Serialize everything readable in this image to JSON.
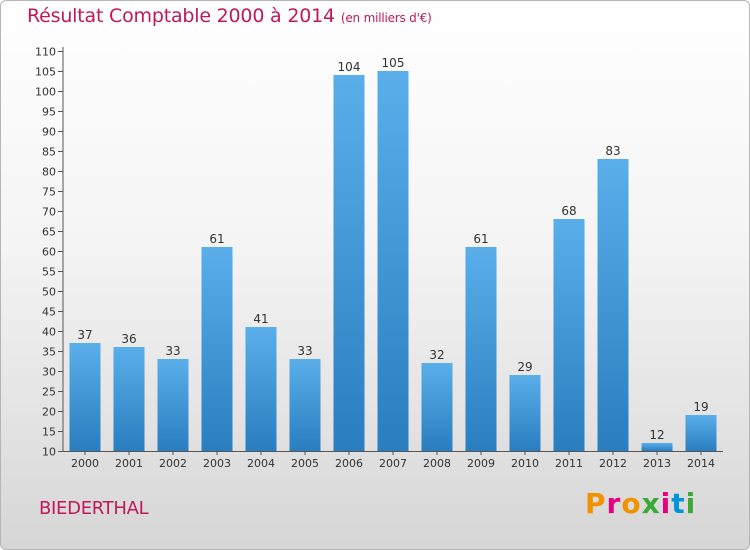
{
  "header": {
    "title": "Résultat Comptable 2000 à 2014",
    "subtitle": "(en milliers d'€)"
  },
  "footer": {
    "commune": "BIEDERTHAL",
    "logo_text": "Proxiti"
  },
  "colors": {
    "title": "#c0185a",
    "bar_top": "#5aaeea",
    "bar_bottom": "#2a7ec0",
    "logo_letters": [
      "#f39200",
      "#e5007d",
      "#f39200",
      "#3aa935",
      "#e5007d",
      "#0095db",
      "#3aa935"
    ]
  },
  "chart_data": {
    "type": "bar",
    "title": "Résultat Comptable 2000 à 2014",
    "subtitle": "(en milliers d'€)",
    "xlabel": "",
    "ylabel": "",
    "categories": [
      "2000",
      "2001",
      "2002",
      "2003",
      "2004",
      "2005",
      "2006",
      "2007",
      "2008",
      "2009",
      "2010",
      "2011",
      "2012",
      "2013",
      "2014"
    ],
    "values": [
      37,
      36,
      33,
      61,
      41,
      33,
      104,
      105,
      32,
      61,
      29,
      68,
      83,
      12,
      19
    ],
    "ylim": [
      10,
      110
    ],
    "yticks": [
      10,
      15,
      20,
      25,
      30,
      35,
      40,
      45,
      50,
      55,
      60,
      65,
      70,
      75,
      80,
      85,
      90,
      95,
      100,
      105,
      110
    ],
    "grid": false,
    "data_labels": true
  }
}
